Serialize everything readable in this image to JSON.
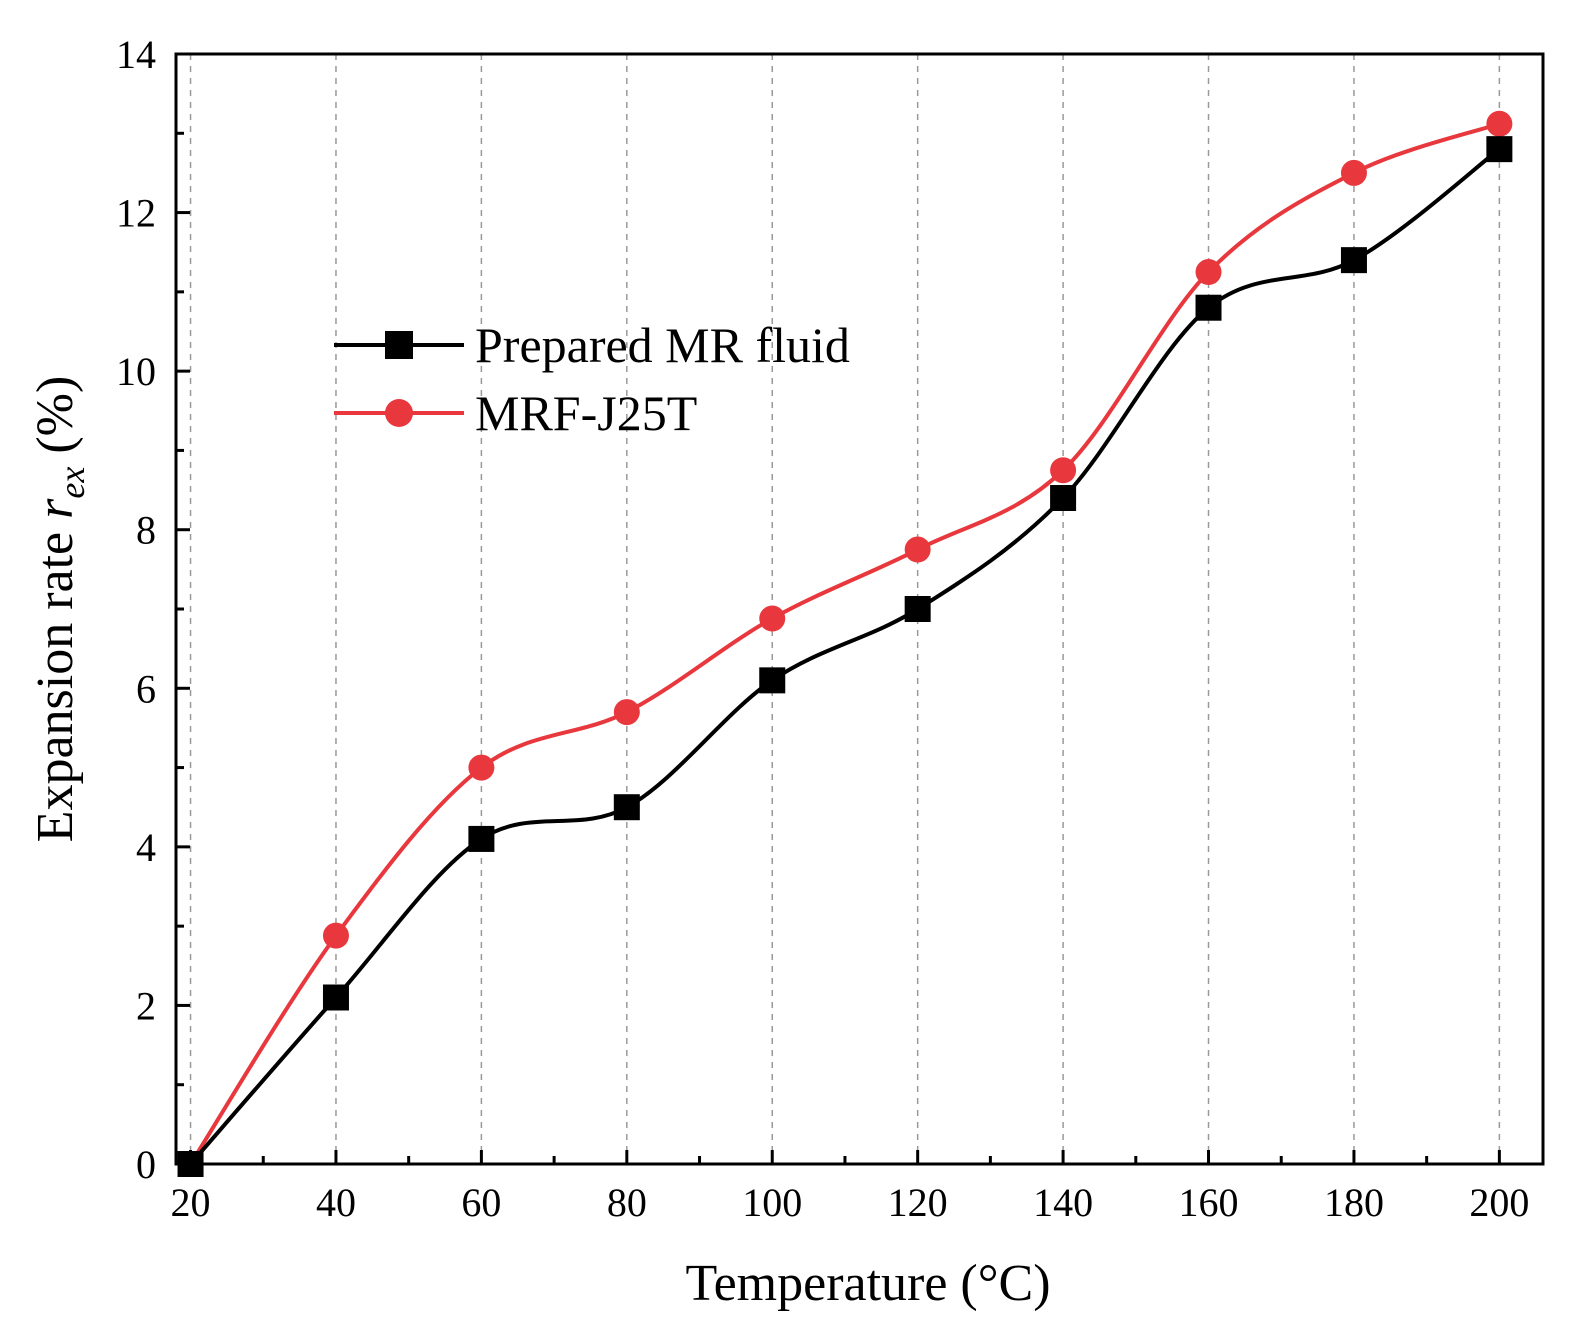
{
  "chart_data": {
    "type": "line",
    "title": "",
    "xlabel": "Temperature (°C)",
    "ylabel": {
      "prefix": "Expansion rate ",
      "symbol": "r",
      "subscript": "ex",
      "suffix": " (%)"
    },
    "xlim": [
      18,
      206
    ],
    "ylim": [
      0,
      14
    ],
    "x_ticks": [
      20,
      40,
      60,
      80,
      100,
      120,
      140,
      160,
      180,
      200
    ],
    "y_ticks": [
      0,
      2,
      4,
      6,
      8,
      10,
      12,
      14
    ],
    "grid": "vertical dashed",
    "legend_position": "upper-left",
    "x": [
      20,
      40,
      60,
      80,
      100,
      120,
      140,
      160,
      180,
      200
    ],
    "series": [
      {
        "name": "Prepared MR fluid",
        "color": "#000000",
        "marker": "square",
        "values": [
          0,
          2.1,
          4.1,
          4.5,
          6.1,
          7.0,
          8.4,
          10.8,
          11.4,
          12.8
        ]
      },
      {
        "name": "MRF-J25T",
        "color": "#e8383d",
        "marker": "circle",
        "values": [
          0,
          2.88,
          5.0,
          5.7,
          6.88,
          7.75,
          8.75,
          11.25,
          12.5,
          13.12
        ]
      }
    ]
  }
}
